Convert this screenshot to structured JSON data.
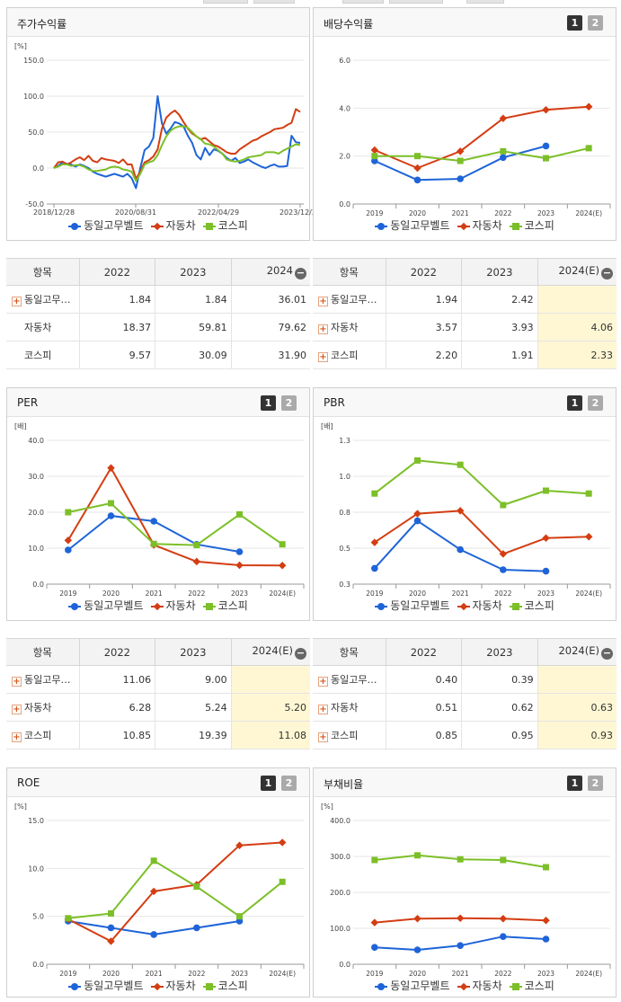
{
  "colors": {
    "dongil": "#1e64d8",
    "car": "#d43d12",
    "kospi": "#7cbf28"
  },
  "series_names": [
    "동일고무벨트",
    "자동차",
    "코스피"
  ],
  "buttons": {
    "b1": "1",
    "b2": "2"
  },
  "panels": {
    "stock": {
      "title": "주가수익률"
    },
    "dividend": {
      "title": "배당수익률"
    },
    "per": {
      "title": "PER"
    },
    "pbr": {
      "title": "PBR"
    },
    "roe": {
      "title": "ROE"
    },
    "debt": {
      "title": "부채비율"
    }
  },
  "tables": {
    "stock": {
      "headers": [
        "항목",
        "2022",
        "2023",
        "2024"
      ],
      "rows": [
        {
          "name": "동일고무…",
          "expand": true,
          "values": [
            "1.84",
            "1.84",
            "36.01"
          ]
        },
        {
          "name": "자동차",
          "expand": false,
          "values": [
            "18.37",
            "59.81",
            "79.62"
          ]
        },
        {
          "name": "코스피",
          "expand": false,
          "values": [
            "9.57",
            "30.09",
            "31.90"
          ]
        }
      ]
    },
    "dividend": {
      "headers": [
        "항목",
        "2022",
        "2023",
        "2024(E)"
      ],
      "rows": [
        {
          "name": "동일고무…",
          "expand": true,
          "values": [
            "1.94",
            "2.42",
            ""
          ]
        },
        {
          "name": "자동차",
          "expand": true,
          "values": [
            "3.57",
            "3.93",
            "4.06"
          ]
        },
        {
          "name": "코스피",
          "expand": true,
          "values": [
            "2.20",
            "1.91",
            "2.33"
          ]
        }
      ]
    },
    "per": {
      "headers": [
        "항목",
        "2022",
        "2023",
        "2024(E)"
      ],
      "rows": [
        {
          "name": "동일고무…",
          "expand": true,
          "values": [
            "11.06",
            "9.00",
            ""
          ]
        },
        {
          "name": "자동차",
          "expand": true,
          "values": [
            "6.28",
            "5.24",
            "5.20"
          ]
        },
        {
          "name": "코스피",
          "expand": true,
          "values": [
            "10.85",
            "19.39",
            "11.08"
          ]
        }
      ]
    },
    "pbr": {
      "headers": [
        "항목",
        "2022",
        "2023",
        "2024(E)"
      ],
      "rows": [
        {
          "name": "동일고무…",
          "expand": true,
          "values": [
            "0.40",
            "0.39",
            ""
          ]
        },
        {
          "name": "자동차",
          "expand": true,
          "values": [
            "0.51",
            "0.62",
            "0.63"
          ]
        },
        {
          "name": "코스피",
          "expand": true,
          "values": [
            "0.85",
            "0.95",
            "0.93"
          ]
        }
      ]
    }
  },
  "chart_data": [
    {
      "id": "stock",
      "type": "line",
      "title": "주가수익률",
      "unit": "[%]",
      "ylim": [
        -50,
        150
      ],
      "yticks": [
        "150.0",
        "100.0",
        "50.0",
        "0.0",
        "-50.0"
      ],
      "xticks": [
        "2018/12/28",
        "2020/08/31",
        "2022/04/29",
        "2023/12/28"
      ],
      "series": [
        {
          "name": "동일고무벨트",
          "values": [
            0,
            3,
            8,
            6,
            5,
            2,
            5,
            3,
            0,
            -5,
            -8,
            -10,
            -12,
            -10,
            -8,
            -10,
            -12,
            -8,
            -14,
            -28,
            0,
            25,
            30,
            42,
            100,
            62,
            48,
            55,
            64,
            62,
            58,
            45,
            35,
            18,
            12,
            28,
            18,
            26,
            24,
            20,
            14,
            10,
            14,
            7,
            9,
            12,
            8,
            5,
            2,
            0,
            3,
            5,
            2,
            2,
            3,
            45,
            36,
            35
          ]
        },
        {
          "name": "자동차",
          "values": [
            0,
            8,
            9,
            5,
            8,
            12,
            15,
            11,
            17,
            10,
            8,
            14,
            12,
            11,
            10,
            7,
            12,
            5,
            5,
            -15,
            -5,
            8,
            11,
            16,
            26,
            55,
            70,
            76,
            80,
            74,
            64,
            55,
            48,
            44,
            40,
            42,
            37,
            32,
            30,
            26,
            22,
            20,
            20,
            26,
            30,
            34,
            38,
            40,
            44,
            47,
            50,
            54,
            55,
            56,
            60,
            63,
            82,
            78
          ]
        },
        {
          "name": "코스피",
          "values": [
            0,
            2,
            5,
            5,
            3,
            4,
            4,
            2,
            -2,
            -4,
            -4,
            -3,
            -2,
            1,
            2,
            1,
            -2,
            -3,
            -5,
            -18,
            -8,
            5,
            8,
            10,
            18,
            32,
            44,
            52,
            56,
            58,
            58,
            56,
            50,
            44,
            40,
            34,
            33,
            30,
            25,
            20,
            12,
            10,
            9,
            10,
            12,
            15,
            16,
            17,
            18,
            22,
            22,
            22,
            20,
            24,
            27,
            30,
            33,
            32
          ]
        }
      ]
    },
    {
      "id": "dividend",
      "type": "line",
      "title": "배당수익률",
      "ylim": [
        0,
        6
      ],
      "yticks": [
        "6.0",
        "4.0",
        "2.0",
        "0.0"
      ],
      "categories": [
        "2019",
        "2020",
        "2021",
        "2022",
        "2023",
        "2024(E)"
      ],
      "series": [
        {
          "name": "동일고무벨트",
          "values": [
            1.8,
            1.0,
            1.05,
            1.94,
            2.42,
            null
          ]
        },
        {
          "name": "자동차",
          "values": [
            2.25,
            1.5,
            2.2,
            3.57,
            3.93,
            4.06
          ]
        },
        {
          "name": "코스피",
          "values": [
            2.0,
            2.0,
            1.8,
            2.2,
            1.91,
            2.33
          ]
        }
      ]
    },
    {
      "id": "per",
      "type": "line",
      "title": "PER",
      "unit": "[배]",
      "ylim": [
        0,
        40
      ],
      "yticks": [
        "40.0",
        "30.0",
        "20.0",
        "10.0",
        "0.0"
      ],
      "categories": [
        "2019",
        "2020",
        "2021",
        "2022",
        "2023",
        "2024(E)"
      ],
      "series": [
        {
          "name": "동일고무벨트",
          "values": [
            9.5,
            19.0,
            17.5,
            11.06,
            9.0,
            null
          ]
        },
        {
          "name": "자동차",
          "values": [
            12.2,
            32.3,
            10.9,
            6.28,
            5.24,
            5.2
          ]
        },
        {
          "name": "코스피",
          "values": [
            20.0,
            22.5,
            11.2,
            10.85,
            19.39,
            11.08
          ]
        }
      ]
    },
    {
      "id": "pbr",
      "type": "line",
      "title": "PBR",
      "unit": "[배]",
      "ylim": [
        0.3,
        1.3
      ],
      "yticks": [
        "1.3",
        "1.0",
        "0.8",
        "0.5",
        "0.3"
      ],
      "categories": [
        "2019",
        "2020",
        "2021",
        "2022",
        "2023",
        "2024(E)"
      ],
      "series": [
        {
          "name": "동일고무벨트",
          "values": [
            0.41,
            0.74,
            0.54,
            0.4,
            0.39,
            null
          ]
        },
        {
          "name": "자동차",
          "values": [
            0.59,
            0.79,
            0.81,
            0.51,
            0.62,
            0.63
          ]
        },
        {
          "name": "코스피",
          "values": [
            0.93,
            1.16,
            1.13,
            0.85,
            0.95,
            0.93
          ]
        }
      ]
    },
    {
      "id": "roe",
      "type": "line",
      "title": "ROE",
      "unit": "[%]",
      "ylim": [
        0,
        15
      ],
      "yticks": [
        "15.0",
        "10.0",
        "5.0",
        "0.0"
      ],
      "categories": [
        "2019",
        "2020",
        "2021",
        "2022",
        "2023",
        "2024(E)"
      ],
      "series": [
        {
          "name": "동일고무벨트",
          "values": [
            4.5,
            3.8,
            3.1,
            3.8,
            4.5,
            null
          ]
        },
        {
          "name": "자동차",
          "values": [
            4.7,
            2.4,
            7.6,
            8.3,
            12.4,
            12.7
          ]
        },
        {
          "name": "코스피",
          "values": [
            4.8,
            5.3,
            10.8,
            8.1,
            5.0,
            8.6
          ]
        }
      ]
    },
    {
      "id": "debt",
      "type": "line",
      "title": "부채비율",
      "unit": "[%]",
      "ylim": [
        0,
        400
      ],
      "yticks": [
        "400.0",
        "300.0",
        "200.0",
        "100.0",
        "0.0"
      ],
      "categories": [
        "2019",
        "2020",
        "2021",
        "2022",
        "2023",
        "2024(E)"
      ],
      "series": [
        {
          "name": "동일고무벨트",
          "values": [
            47,
            40,
            52,
            77,
            70,
            null
          ]
        },
        {
          "name": "자동차",
          "values": [
            116,
            127,
            128,
            127,
            122,
            null
          ]
        },
        {
          "name": "코스피",
          "values": [
            290,
            303,
            292,
            290,
            270,
            null
          ]
        }
      ]
    }
  ]
}
